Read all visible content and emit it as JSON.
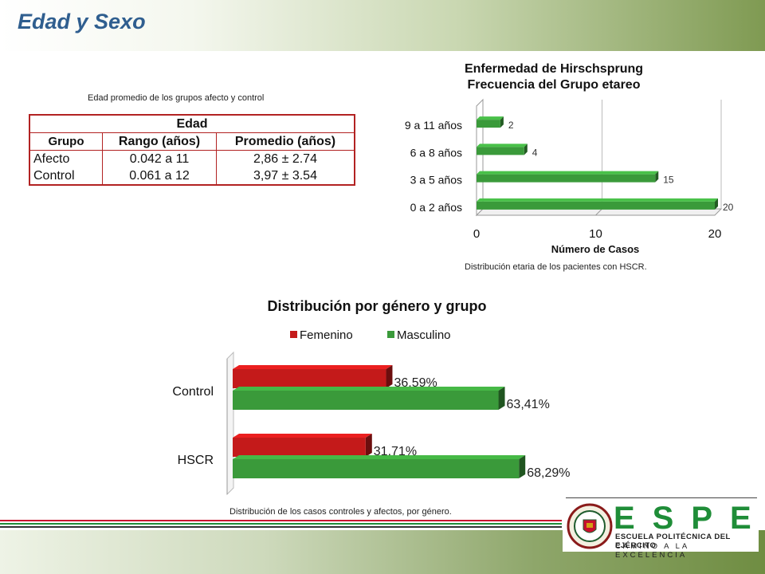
{
  "page": {
    "title": "Edad y Sexo",
    "table_caption": "Edad promedio de los grupos afecto y control",
    "logo": {
      "word": "ESPE",
      "line1": "ESCUELA POLITÉCNICA DEL EJÉRCITO",
      "line2": "CAMINO A LA EXCELENCIA"
    }
  },
  "table": {
    "header_top": "Edad",
    "columns": [
      "Grupo",
      "Rango (años)",
      "Promedio (años)"
    ],
    "rows": [
      [
        "Afecto",
        "0.042 a 11",
        "2,86 ± 2.74"
      ],
      [
        "Control",
        "0.061 a 12",
        "3,97 ± 3.54"
      ]
    ]
  },
  "chart_data": [
    {
      "type": "bar",
      "orientation": "horizontal",
      "title": "Enfermedad de Hirschsprung Frecuencia del Grupo etareo",
      "title_lines": [
        "Enfermedad de Hirschsprung",
        "Frecuencia del Grupo etareo"
      ],
      "categories": [
        "9 a 11 años",
        "6 a 8 años",
        "3 a 5 años",
        "0 a 2 años"
      ],
      "values": [
        2,
        4,
        15,
        20
      ],
      "data_labels": [
        "2",
        "4",
        "15",
        "20"
      ],
      "xlabel": "Número de Casos",
      "ylabel": "",
      "xlim": [
        0,
        20
      ],
      "xticks": [
        "0",
        "10",
        "20"
      ],
      "grid": true,
      "color": "#3a9a3a",
      "caption": "Distribución etaria de los pacientes con HSCR."
    },
    {
      "type": "bar",
      "orientation": "horizontal",
      "title": "Distribución por género y grupo",
      "categories": [
        "Control",
        "HSCR"
      ],
      "series": [
        {
          "name": "Femenino",
          "values": [
            36.59,
            31.71
          ],
          "labels": [
            "36,59%",
            "31,71%"
          ],
          "color": "#c41a1a"
        },
        {
          "name": "Masculino",
          "values": [
            63.41,
            68.29
          ],
          "labels": [
            "63,41%",
            "68,29%"
          ],
          "color": "#3a9a3a"
        }
      ],
      "xlim": [
        0,
        100
      ],
      "legend": "top",
      "grid": false,
      "caption": "Distribución de los casos controles y afectos, por género."
    }
  ]
}
